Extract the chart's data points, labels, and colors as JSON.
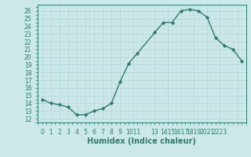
{
  "x": [
    0,
    1,
    2,
    3,
    4,
    5,
    6,
    7,
    8,
    9,
    10,
    11,
    13,
    14,
    15,
    16,
    17,
    18,
    19,
    20,
    21,
    22,
    23
  ],
  "y": [
    14.5,
    14.0,
    13.8,
    13.5,
    12.5,
    12.5,
    13.0,
    13.3,
    14.0,
    16.8,
    19.2,
    20.5,
    23.2,
    24.5,
    24.5,
    26.0,
    26.2,
    26.0,
    25.2,
    22.5,
    21.5,
    21.0,
    19.5
  ],
  "line_color": "#2e7d6e",
  "marker_color": "#2e7d6e",
  "bg_color": "#cce8e8",
  "grid_major_color": "#b0d4d4",
  "grid_minor_color": "#c0dcdc",
  "xlabel": "Humidex (Indice chaleur)",
  "ylim": [
    11.5,
    26.8
  ],
  "xlim": [
    -0.5,
    23.5
  ],
  "ytick_labels": [
    "12",
    "13",
    "14",
    "15",
    "16",
    "17",
    "18",
    "19",
    "20",
    "21",
    "22",
    "23",
    "24",
    "25",
    "26"
  ],
  "ytick_values": [
    12,
    13,
    14,
    15,
    16,
    17,
    18,
    19,
    20,
    21,
    22,
    23,
    24,
    25,
    26
  ],
  "xtick_positions": [
    0,
    1,
    2,
    3,
    4,
    5,
    6,
    7,
    8,
    9,
    10.5,
    13,
    14.5,
    16,
    17.5,
    19,
    20.5,
    22.5
  ],
  "xtick_labels": [
    "0",
    "1",
    "2",
    "3",
    "4",
    "5",
    "6",
    "7",
    "8",
    "9",
    "1011",
    "13",
    "1415",
    "1617",
    "1819",
    "2021",
    "2223",
    ""
  ],
  "tick_fontsize": 5.5,
  "label_fontsize": 7,
  "linewidth": 1.0,
  "markersize": 2.2
}
